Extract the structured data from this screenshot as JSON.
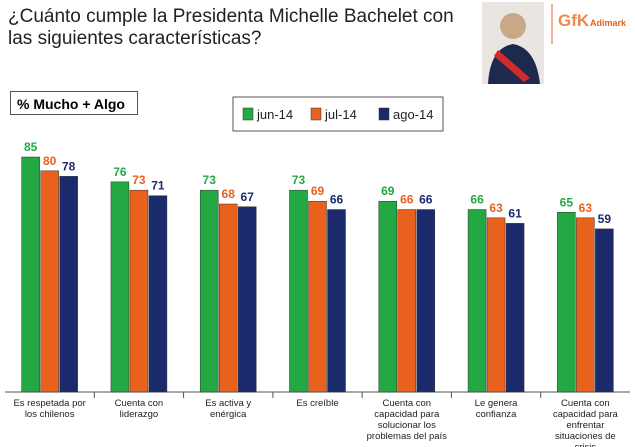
{
  "chart_data": {
    "type": "bar",
    "title": "¿Cuánto cumple la Presidenta Michelle Bachelet con las siguientes características?",
    "subtitle": "% Mucho + Algo",
    "logo": {
      "brand": "GfK",
      "name": "Adimark"
    },
    "categories": [
      "Es respetada por los chilenos",
      "Cuenta con liderazgo",
      "Es activa y enérgica",
      "Es creíble",
      "Cuenta con capacidad para solucionar los problemas del país",
      "Le genera confianza",
      "Cuenta con capacidad para enfrentar situaciones de crisis"
    ],
    "series": [
      {
        "name": "jun-14",
        "color": "#23a843",
        "values": [
          85,
          76,
          73,
          73,
          69,
          66,
          65
        ]
      },
      {
        "name": "jul-14",
        "color": "#e8611d",
        "values": [
          80,
          73,
          68,
          69,
          66,
          63,
          63
        ]
      },
      {
        "name": "ago-14",
        "color": "#1b2a6b",
        "values": [
          78,
          71,
          67,
          66,
          66,
          61,
          59
        ]
      }
    ]
  }
}
